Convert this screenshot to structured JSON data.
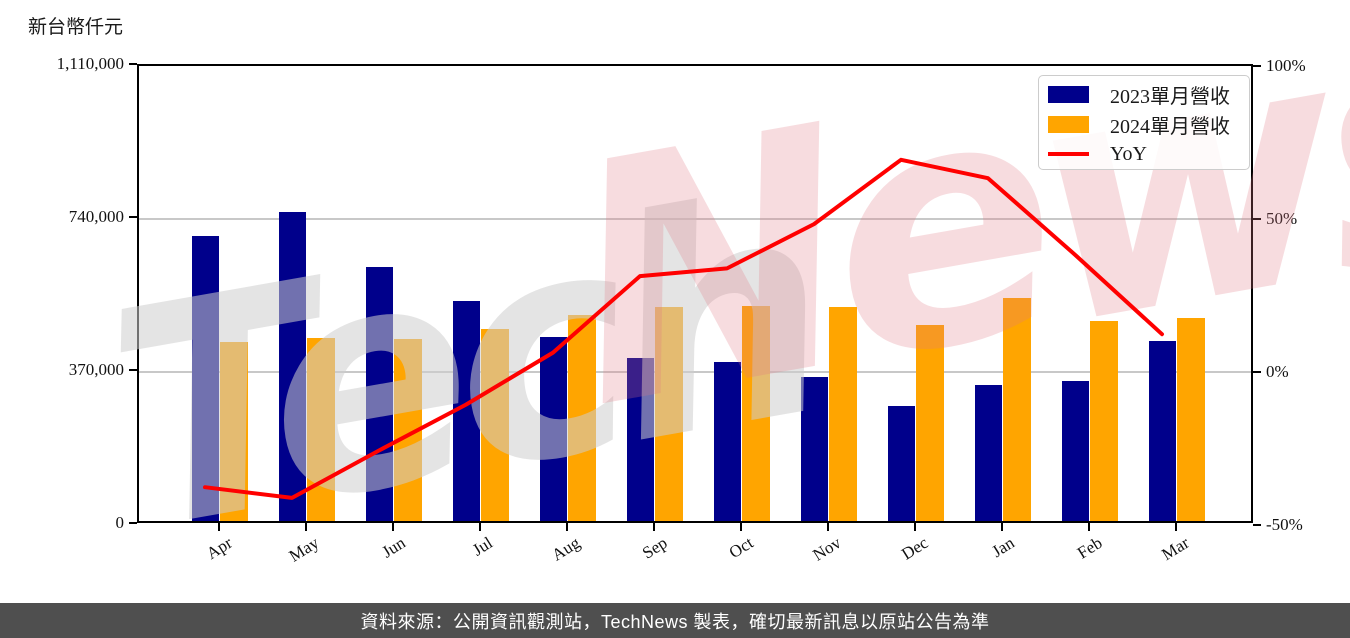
{
  "chart_data": {
    "type": "bar+line",
    "unit_label": "新台幣仟元",
    "categories": [
      "Apr",
      "May",
      "Jun",
      "Jul",
      "Aug",
      "Sep",
      "Oct",
      "Nov",
      "Dec",
      "Jan",
      "Feb",
      "Mar"
    ],
    "series": [
      {
        "name": "2023單月營收",
        "type": "bar",
        "axis": "left",
        "color": "#00008B",
        "values": [
          690000,
          747000,
          615000,
          532000,
          445000,
          394000,
          385000,
          348000,
          279000,
          330000,
          339000,
          436000
        ]
      },
      {
        "name": "2024單月營收",
        "type": "bar",
        "axis": "left",
        "color": "#FFA500",
        "values": [
          433000,
          442000,
          440000,
          465000,
          497000,
          518000,
          521000,
          518000,
          475000,
          539000,
          483000,
          491000
        ]
      },
      {
        "name": "YoY",
        "type": "line",
        "axis": "right",
        "color": "#FF0000",
        "values_percent": [
          -37,
          -40.5,
          -25,
          -10,
          7,
          32,
          34.5,
          49,
          70,
          64,
          39,
          13
        ]
      }
    ],
    "left_axis": {
      "tick_labels": [
        "1,110,000",
        "740,000",
        "370,000",
        "0"
      ],
      "tick_values": [
        1110000,
        740000,
        370000,
        0
      ],
      "range": [
        0,
        1110000
      ]
    },
    "right_axis": {
      "tick_labels": [
        "100%",
        "50%",
        "0%",
        "-50%"
      ],
      "tick_values": [
        100,
        50,
        0,
        -50
      ],
      "range": [
        -50,
        100
      ]
    },
    "gridline_values": [
      740000,
      370000
    ],
    "grid": true,
    "legend_position": "upper right",
    "colors": {
      "bar_2023": "#00008B",
      "bar_2024": "#FFA500",
      "yoy_line": "#FF0000",
      "gridline": "#c8c8c8",
      "footer_bg": "#4f4f4f"
    }
  },
  "watermark": {
    "part1": "Tech",
    "part2": "News"
  },
  "footer": {
    "text": "資料來源：公開資訊觀測站，TechNews 製表，確切最新訊息以原站公告為準"
  }
}
